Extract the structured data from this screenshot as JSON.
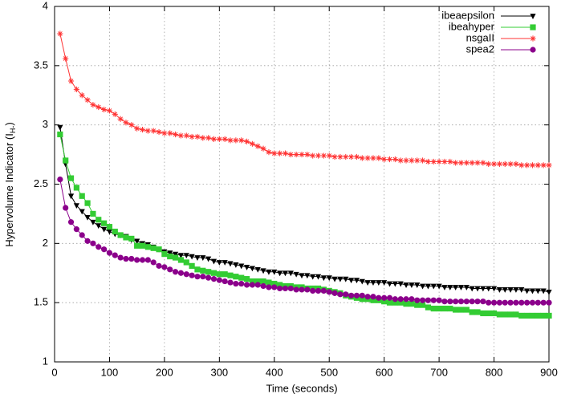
{
  "chart_data": {
    "type": "line",
    "x_label": "Time (seconds)",
    "y_label": [
      "Hypervolume Indicator (I",
      "H-",
      ")"
    ],
    "x": [
      10,
      20,
      30,
      40,
      50,
      60,
      70,
      80,
      90,
      100,
      110,
      120,
      130,
      140,
      150,
      160,
      170,
      180,
      190,
      200,
      210,
      220,
      230,
      240,
      250,
      260,
      270,
      280,
      290,
      300,
      310,
      320,
      330,
      340,
      350,
      360,
      370,
      380,
      390,
      400,
      410,
      420,
      430,
      440,
      450,
      460,
      470,
      480,
      490,
      500,
      510,
      520,
      530,
      540,
      550,
      560,
      570,
      580,
      590,
      600,
      610,
      620,
      630,
      640,
      650,
      660,
      670,
      680,
      690,
      700,
      710,
      720,
      730,
      740,
      750,
      760,
      770,
      780,
      790,
      800,
      810,
      820,
      830,
      840,
      850,
      860,
      870,
      880,
      890,
      900
    ],
    "series": [
      {
        "name": "ibeaepsilon",
        "color": "#000000",
        "marker": "triangle-down",
        "values": [
          2.98,
          2.67,
          2.4,
          2.32,
          2.27,
          2.22,
          2.18,
          2.15,
          2.12,
          2.1,
          2.08,
          2.07,
          2.06,
          2.03,
          2.02,
          2.0,
          1.99,
          1.97,
          1.95,
          1.93,
          1.92,
          1.91,
          1.9,
          1.9,
          1.89,
          1.88,
          1.88,
          1.87,
          1.85,
          1.84,
          1.84,
          1.83,
          1.82,
          1.81,
          1.8,
          1.79,
          1.78,
          1.77,
          1.76,
          1.76,
          1.75,
          1.75,
          1.75,
          1.74,
          1.73,
          1.73,
          1.72,
          1.72,
          1.71,
          1.71,
          1.7,
          1.7,
          1.7,
          1.69,
          1.69,
          1.68,
          1.67,
          1.67,
          1.67,
          1.67,
          1.66,
          1.66,
          1.66,
          1.65,
          1.65,
          1.65,
          1.64,
          1.64,
          1.64,
          1.64,
          1.63,
          1.63,
          1.63,
          1.63,
          1.63,
          1.62,
          1.62,
          1.62,
          1.62,
          1.62,
          1.61,
          1.61,
          1.61,
          1.61,
          1.61,
          1.6,
          1.6,
          1.6,
          1.6,
          1.59
        ]
      },
      {
        "name": "ibeahyper",
        "color": "#33cc33",
        "marker": "square",
        "values": [
          2.92,
          2.7,
          2.55,
          2.47,
          2.4,
          2.34,
          2.25,
          2.2,
          2.17,
          2.14,
          2.1,
          2.07,
          2.05,
          2.04,
          1.98,
          1.98,
          1.97,
          1.96,
          1.95,
          1.91,
          1.89,
          1.88,
          1.86,
          1.84,
          1.81,
          1.78,
          1.77,
          1.76,
          1.75,
          1.74,
          1.74,
          1.73,
          1.72,
          1.71,
          1.7,
          1.68,
          1.68,
          1.68,
          1.67,
          1.66,
          1.65,
          1.64,
          1.64,
          1.63,
          1.63,
          1.62,
          1.62,
          1.62,
          1.61,
          1.6,
          1.59,
          1.58,
          1.56,
          1.55,
          1.54,
          1.53,
          1.53,
          1.52,
          1.52,
          1.51,
          1.5,
          1.5,
          1.5,
          1.49,
          1.49,
          1.48,
          1.48,
          1.46,
          1.45,
          1.45,
          1.45,
          1.45,
          1.44,
          1.44,
          1.44,
          1.42,
          1.42,
          1.41,
          1.41,
          1.41,
          1.4,
          1.4,
          1.4,
          1.4,
          1.39,
          1.39,
          1.39,
          1.39,
          1.39,
          1.39
        ]
      },
      {
        "name": "nsgaII",
        "color": "#ff3333",
        "marker": "asterisk",
        "values": [
          3.77,
          3.56,
          3.37,
          3.3,
          3.25,
          3.21,
          3.17,
          3.15,
          3.13,
          3.12,
          3.09,
          3.05,
          3.02,
          3.0,
          2.97,
          2.96,
          2.95,
          2.95,
          2.94,
          2.93,
          2.93,
          2.92,
          2.91,
          2.91,
          2.9,
          2.9,
          2.89,
          2.89,
          2.88,
          2.88,
          2.88,
          2.87,
          2.87,
          2.87,
          2.86,
          2.84,
          2.82,
          2.8,
          2.77,
          2.76,
          2.76,
          2.76,
          2.75,
          2.75,
          2.75,
          2.75,
          2.74,
          2.74,
          2.74,
          2.74,
          2.73,
          2.73,
          2.73,
          2.73,
          2.73,
          2.72,
          2.72,
          2.72,
          2.72,
          2.71,
          2.71,
          2.71,
          2.7,
          2.7,
          2.7,
          2.7,
          2.7,
          2.69,
          2.69,
          2.69,
          2.69,
          2.69,
          2.68,
          2.68,
          2.68,
          2.68,
          2.68,
          2.68,
          2.67,
          2.67,
          2.67,
          2.67,
          2.67,
          2.67,
          2.66,
          2.66,
          2.66,
          2.66,
          2.66,
          2.66
        ]
      },
      {
        "name": "spea2",
        "color": "#8b008b",
        "marker": "circle",
        "values": [
          2.54,
          2.3,
          2.18,
          2.12,
          2.07,
          2.02,
          2.0,
          1.97,
          1.95,
          1.92,
          1.9,
          1.88,
          1.87,
          1.87,
          1.86,
          1.86,
          1.86,
          1.84,
          1.81,
          1.8,
          1.78,
          1.76,
          1.75,
          1.74,
          1.73,
          1.72,
          1.72,
          1.71,
          1.7,
          1.69,
          1.68,
          1.67,
          1.66,
          1.66,
          1.65,
          1.65,
          1.65,
          1.64,
          1.63,
          1.63,
          1.62,
          1.62,
          1.62,
          1.61,
          1.61,
          1.61,
          1.6,
          1.6,
          1.6,
          1.59,
          1.58,
          1.57,
          1.57,
          1.56,
          1.56,
          1.56,
          1.55,
          1.55,
          1.54,
          1.54,
          1.54,
          1.53,
          1.53,
          1.53,
          1.53,
          1.52,
          1.52,
          1.52,
          1.52,
          1.52,
          1.51,
          1.51,
          1.51,
          1.51,
          1.51,
          1.51,
          1.51,
          1.51,
          1.5,
          1.5,
          1.5,
          1.5,
          1.5,
          1.5,
          1.5,
          1.5,
          1.5,
          1.5,
          1.5,
          1.5
        ]
      }
    ],
    "xlim": [
      0,
      900
    ],
    "ylim": [
      1,
      4
    ],
    "xticks": [
      0,
      100,
      200,
      300,
      400,
      500,
      600,
      700,
      800,
      900
    ],
    "yticks": [
      1,
      1.5,
      2,
      2.5,
      3,
      3.5,
      4
    ],
    "grid": true,
    "legend": "top-right"
  }
}
